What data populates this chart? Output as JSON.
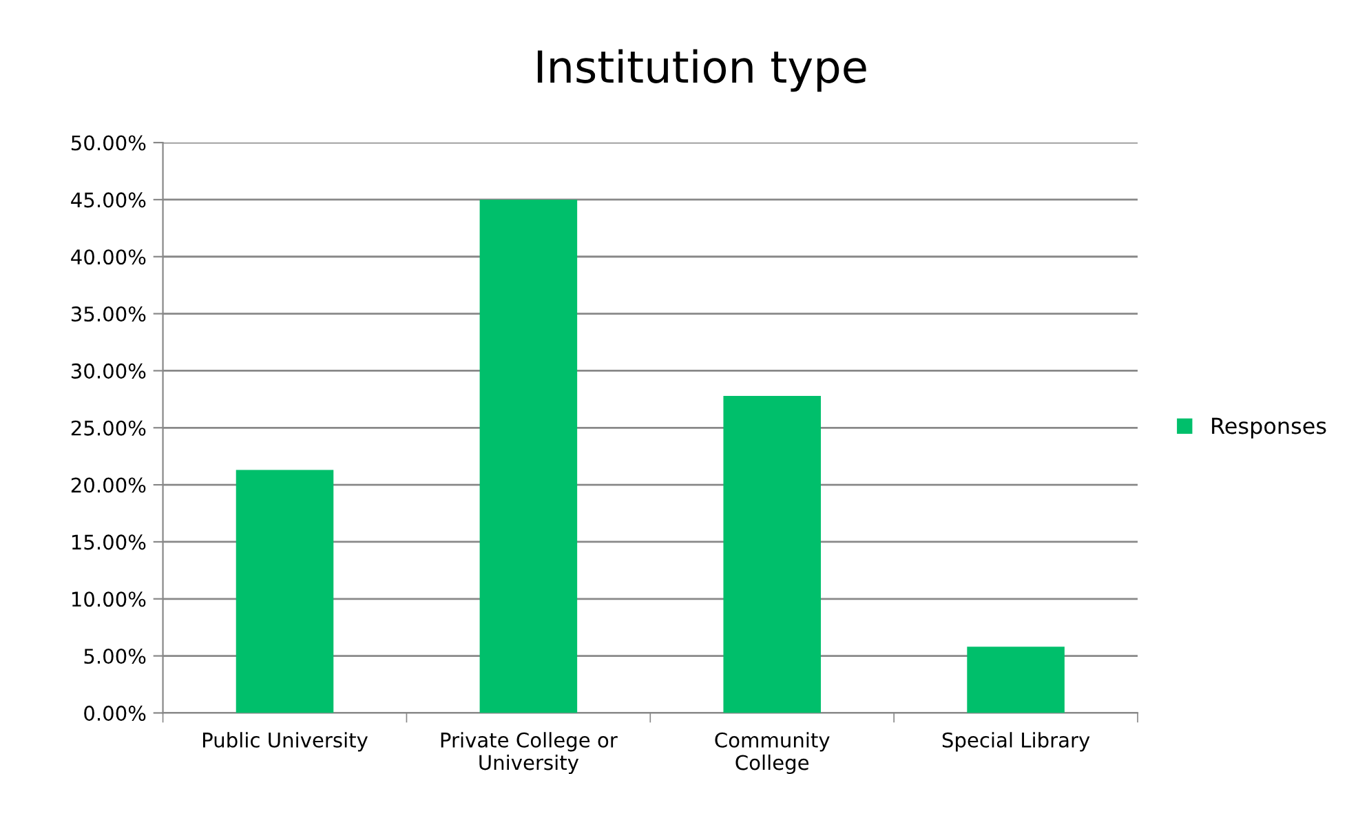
{
  "chart_data": {
    "type": "bar",
    "title": "Institution type",
    "categories": [
      "Public University",
      "Private College or\nUniversity",
      "Community\nCollege",
      "Special Library"
    ],
    "series": [
      {
        "name": "Responses",
        "color": "#00bf6b",
        "values": [
          21.3,
          45.0,
          27.8,
          5.8
        ]
      }
    ],
    "ylim": [
      0,
      50
    ],
    "yticks": [
      {
        "value": 0,
        "label": "0.00%"
      },
      {
        "value": 5,
        "label": "5.00%"
      },
      {
        "value": 10,
        "label": "10.00%"
      },
      {
        "value": 15,
        "label": "15.00%"
      },
      {
        "value": 20,
        "label": "20.00%"
      },
      {
        "value": 25,
        "label": "25.00%"
      },
      {
        "value": 30,
        "label": "30.00%"
      },
      {
        "value": 35,
        "label": "35.00%"
      },
      {
        "value": 40,
        "label": "40.00%"
      },
      {
        "value": 45,
        "label": "45.00%"
      },
      {
        "value": 50,
        "label": "50.00%"
      }
    ],
    "grid": "y",
    "legend": "right"
  }
}
